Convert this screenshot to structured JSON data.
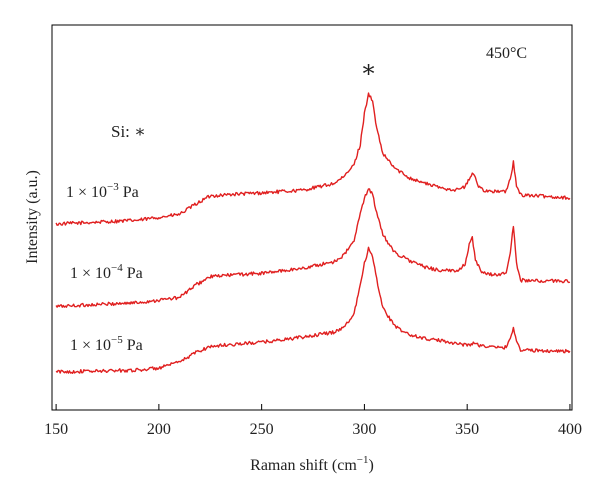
{
  "chart_data": {
    "type": "line",
    "title": "",
    "xlabel": "Raman shift (cm",
    "xlabel_sup": "−1",
    "xlabel_end": ")",
    "ylabel": "Intensity (a.u.)",
    "xlim": [
      148,
      401
    ],
    "ylim": [
      0,
      100
    ],
    "xticks": [
      150,
      200,
      250,
      300,
      350,
      400
    ],
    "xtick_labels": [
      "150",
      "200",
      "250",
      "300",
      "350",
      "400"
    ],
    "line_color": "#e02020",
    "annotations": {
      "temperature": "450°C",
      "si_label": "Si: ∗",
      "peak_marker": "∗",
      "peak_marker_x": 302
    },
    "series": [
      {
        "name": "1 × 10−3 Pa",
        "label_prefix": "1 × 10",
        "label_exp": "−3",
        "label_unit": " Pa",
        "points": [
          [
            150,
            48.3
          ],
          [
            170,
            48.8
          ],
          [
            190,
            49.3
          ],
          [
            210,
            50.8
          ],
          [
            218,
            53.5
          ],
          [
            225,
            55.6
          ],
          [
            235,
            56.0
          ],
          [
            250,
            56.4
          ],
          [
            270,
            57.1
          ],
          [
            285,
            58.8
          ],
          [
            290,
            60.5
          ],
          [
            295,
            63.8
          ],
          [
            298,
            69
          ],
          [
            300,
            77
          ],
          [
            302,
            82.3
          ],
          [
            304,
            80
          ],
          [
            306,
            73
          ],
          [
            309,
            66.5
          ],
          [
            315,
            62.7
          ],
          [
            322,
            60.3
          ],
          [
            330,
            58.8
          ],
          [
            338,
            57.6
          ],
          [
            345,
            57.2
          ],
          [
            349,
            58
          ],
          [
            351,
            60
          ],
          [
            353,
            61.6
          ],
          [
            355,
            58.5
          ],
          [
            358,
            57.1
          ],
          [
            364,
            56.7
          ],
          [
            369,
            56.8
          ],
          [
            371,
            60
          ],
          [
            372.5,
            64.4
          ],
          [
            374,
            58
          ],
          [
            376,
            55.9
          ],
          [
            385,
            55.6
          ],
          [
            400,
            55.1
          ]
        ]
      },
      {
        "name": "1 × 10−4 Pa",
        "label_prefix": "1 × 10",
        "label_exp": "−4",
        "label_unit": " Pa",
        "points": [
          [
            150,
            26.9
          ],
          [
            170,
            27.4
          ],
          [
            190,
            27.9
          ],
          [
            210,
            29.2
          ],
          [
            218,
            32.5
          ],
          [
            225,
            34.6
          ],
          [
            235,
            35.1
          ],
          [
            250,
            35.5
          ],
          [
            270,
            36.8
          ],
          [
            285,
            38.5
          ],
          [
            290,
            40.2
          ],
          [
            295,
            44
          ],
          [
            298,
            51
          ],
          [
            300,
            55
          ],
          [
            302,
            57.6
          ],
          [
            304,
            56
          ],
          [
            306,
            51
          ],
          [
            309,
            45.5
          ],
          [
            315,
            40.8
          ],
          [
            322,
            38.8
          ],
          [
            330,
            37
          ],
          [
            338,
            36.2
          ],
          [
            345,
            36.1
          ],
          [
            349,
            38
          ],
          [
            351,
            43
          ],
          [
            352.5,
            44.6
          ],
          [
            354,
            39
          ],
          [
            357,
            35.6
          ],
          [
            364,
            35.1
          ],
          [
            369,
            35.6
          ],
          [
            371,
            41
          ],
          [
            372.5,
            47.9
          ],
          [
            374,
            38
          ],
          [
            376,
            33.7
          ],
          [
            385,
            33.5
          ],
          [
            400,
            33.5
          ]
        ]
      },
      {
        "name": "1 × 10−5 Pa",
        "label_prefix": "1 × 10",
        "label_exp": "−5",
        "label_unit": " Pa",
        "points": [
          [
            150,
            9.9
          ],
          [
            170,
            10.1
          ],
          [
            190,
            10.4
          ],
          [
            200,
            10.9
          ],
          [
            210,
            12.4
          ],
          [
            218,
            15
          ],
          [
            225,
            16.5
          ],
          [
            235,
            17
          ],
          [
            250,
            17.6
          ],
          [
            270,
            18.9
          ],
          [
            285,
            20.2
          ],
          [
            290,
            21.5
          ],
          [
            295,
            25
          ],
          [
            298,
            33
          ],
          [
            300,
            38
          ],
          [
            302,
            41.9
          ],
          [
            304,
            40
          ],
          [
            306,
            34
          ],
          [
            309,
            26.5
          ],
          [
            315,
            21.6
          ],
          [
            322,
            19.5
          ],
          [
            330,
            18.5
          ],
          [
            340,
            17.8
          ],
          [
            350,
            16.8
          ],
          [
            353,
            17.4
          ],
          [
            356,
            16.8
          ],
          [
            364,
            16.2
          ],
          [
            369,
            16.3
          ],
          [
            371,
            18.5
          ],
          [
            372.5,
            21.5
          ],
          [
            374,
            18
          ],
          [
            376,
            15.6
          ],
          [
            385,
            15.4
          ],
          [
            400,
            15.3
          ]
        ]
      }
    ]
  }
}
